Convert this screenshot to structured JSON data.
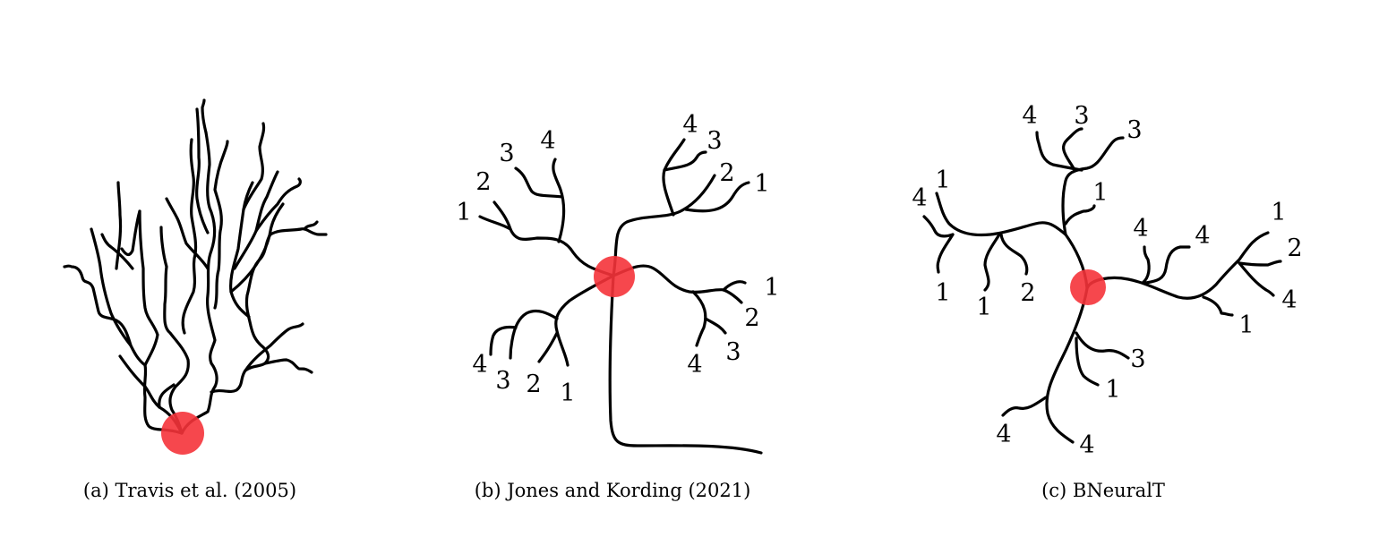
{
  "colors": {
    "soma": "#f5333a",
    "branch": "#000000",
    "background": "#ffffff"
  },
  "panels": {
    "a": {
      "caption": "(a)  Travis et al. (2005)"
    },
    "b": {
      "caption": "(b)  Jones and Kording (2021)",
      "labels": {
        "l1_top": "1",
        "l2_top": "2",
        "l3_top": "3",
        "l4_top": "4",
        "r4_top": "4",
        "r3_top": "3",
        "r2_top": "2",
        "r1_top": "1",
        "r1_mid": "1",
        "r2_mid": "2",
        "r3_mid": "3",
        "r4_mid": "4",
        "l4_bot": "4",
        "l3_bot": "3",
        "l2_bot": "2",
        "l1_bot": "1"
      }
    },
    "c": {
      "caption": "(c)  BNeuralT",
      "labels": {
        "t4": "4",
        "t3a": "3",
        "t3b": "3",
        "t1": "1",
        "l4": "4",
        "l1": "1",
        "l1b": "1",
        "l1c": "1",
        "l2": "2",
        "r4a": "4",
        "r4b": "4",
        "r1a": "1",
        "r2": "2",
        "r4c": "4",
        "r1b": "1",
        "b3": "3",
        "b1": "1",
        "b4a": "4",
        "b4b": "4"
      }
    }
  }
}
